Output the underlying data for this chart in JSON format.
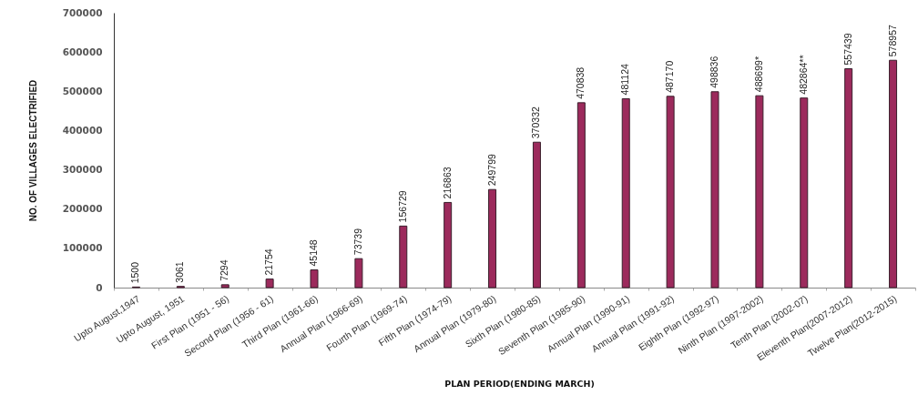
{
  "chart_data": {
    "type": "bar",
    "xlabel": "PLAN PERIOD(ENDING MARCH)",
    "ylabel": "NO. OF VILLAGES ELECTRIFIED",
    "categories": [
      "Upto August,1947",
      "Upto August, 1951",
      "First Plan (1951 - 56)",
      "Second Plan (1956 - 61)",
      "Third Plan (1961-66)",
      "Annual Plan (1966-69)",
      "Fourth Plan (1969-74)",
      "Fifth Plan (1974-79)",
      "Annual Plan (1979-80)",
      "Sixth Plan (1980-85)",
      "Seventh Plan (1985-90)",
      "Annual Plan (1990-91)",
      "Annual Plan (1991-92)",
      "Eighth Plan (1992-97)",
      "Ninth Plan (1997-2002)",
      "Tenth Plan (2002-07)",
      "Eleventh Plan(2007-2012)",
      "Twelve Plan(2012-2015)"
    ],
    "values": [
      1500,
      3061,
      7294,
      21754,
      45148,
      73739,
      156729,
      216863,
      249799,
      370332,
      470838,
      481124,
      487170,
      498836,
      488699,
      482864,
      557439,
      578957
    ],
    "value_labels": [
      "1500",
      "3061",
      "7294",
      "21754",
      "45148",
      "73739",
      "156729",
      "216863",
      "249799",
      "370332",
      "470838",
      "481124",
      "487170",
      "498836",
      "488699*",
      "482864**",
      "557439",
      "578957"
    ],
    "color": "#9c2a5c",
    "ylim": [
      0,
      700000
    ],
    "yticks": [
      0,
      100000,
      200000,
      300000,
      400000,
      500000,
      600000,
      700000
    ],
    "grid": false
  }
}
